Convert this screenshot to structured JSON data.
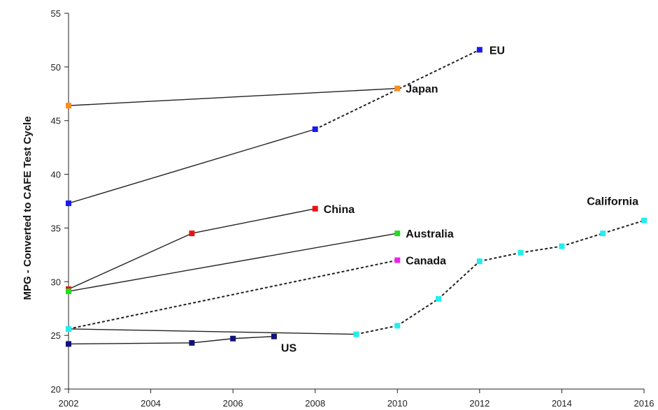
{
  "chart_data": {
    "type": "line",
    "title": "",
    "xlabel": "",
    "ylabel": "MPG - Converted to CAFE Test Cycle",
    "xlim": [
      2002,
      2016
    ],
    "ylim": [
      20,
      55
    ],
    "x_ticks": [
      "2002",
      "2004",
      "2006",
      "2008",
      "2010",
      "2012",
      "2014",
      "2016"
    ],
    "y_ticks": [
      "20",
      "25",
      "30",
      "35",
      "40",
      "45",
      "50",
      "55"
    ],
    "grid": false,
    "series": [
      {
        "name": "EU",
        "color": "#1a1aee",
        "points": [
          {
            "x": 2002,
            "y": 37.3
          },
          {
            "x": 2008,
            "y": 44.2
          },
          {
            "x": 2012,
            "y": 51.6,
            "dashed_from_prev": true
          }
        ]
      },
      {
        "name": "Japan",
        "color": "#ff8c1a",
        "points": [
          {
            "x": 2002,
            "y": 46.4
          },
          {
            "x": 2010,
            "y": 48.0
          }
        ]
      },
      {
        "name": "China",
        "color": "#ee1111",
        "points": [
          {
            "x": 2002,
            "y": 29.3
          },
          {
            "x": 2005,
            "y": 34.5
          },
          {
            "x": 2008,
            "y": 36.8
          }
        ]
      },
      {
        "name": "Australia",
        "color": "#22dd22",
        "points": [
          {
            "x": 2002,
            "y": 29.1
          },
          {
            "x": 2010,
            "y": 34.5
          }
        ]
      },
      {
        "name": "Canada",
        "color": "#ee22ee",
        "points": [
          {
            "x": 2002,
            "y": 25.6
          },
          {
            "x": 2010,
            "y": 32.0,
            "dashed_from_prev": true
          }
        ]
      },
      {
        "name": "California",
        "color": "#22eeee",
        "points": [
          {
            "x": 2002,
            "y": 25.6
          },
          {
            "x": 2009,
            "y": 25.1
          },
          {
            "x": 2010,
            "y": 25.9,
            "dashed_from_prev": true
          },
          {
            "x": 2011,
            "y": 28.4,
            "dashed_from_prev": true
          },
          {
            "x": 2012,
            "y": 31.9,
            "dashed_from_prev": true
          },
          {
            "x": 2013,
            "y": 32.7,
            "dashed_from_prev": true
          },
          {
            "x": 2014,
            "y": 33.3,
            "dashed_from_prev": true
          },
          {
            "x": 2015,
            "y": 34.5,
            "dashed_from_prev": true
          },
          {
            "x": 2016,
            "y": 35.7,
            "dashed_from_prev": true
          }
        ]
      },
      {
        "name": "US",
        "color": "#121278",
        "points": [
          {
            "x": 2002,
            "y": 24.2
          },
          {
            "x": 2005,
            "y": 24.3
          },
          {
            "x": 2006,
            "y": 24.7
          },
          {
            "x": 2007,
            "y": 24.9
          }
        ]
      }
    ]
  }
}
